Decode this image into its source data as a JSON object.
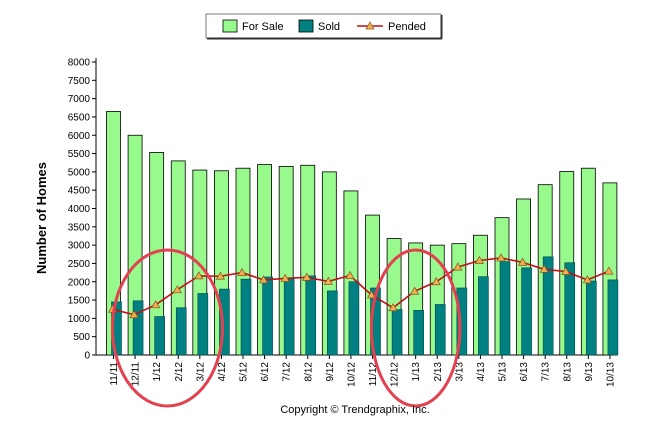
{
  "chart_data": {
    "type": "bar",
    "title": "",
    "xlabel": "",
    "ylabel": "Number of Homes",
    "ylim": [
      0,
      8000
    ],
    "ytick_step": 500,
    "grid": false,
    "legend_position": "top-center",
    "copyright": "Copyright © Trendgraphix, Inc.",
    "categories": [
      "11/11",
      "12/11",
      "1/12",
      "2/12",
      "3/12",
      "4/12",
      "5/12",
      "6/12",
      "7/12",
      "8/12",
      "9/12",
      "10/12",
      "11/12",
      "12/12",
      "1/13",
      "2/13",
      "3/13",
      "4/13",
      "5/13",
      "6/13",
      "7/13",
      "8/13",
      "9/13",
      "10/13"
    ],
    "series": [
      {
        "name": "For Sale",
        "kind": "bar",
        "color": "#98fa8c",
        "values": [
          6650,
          6000,
          5530,
          5300,
          5050,
          5030,
          5100,
          5200,
          5150,
          5180,
          5000,
          4480,
          3820,
          3180,
          3060,
          3000,
          3040,
          3270,
          3750,
          4260,
          4650,
          5010,
          5100,
          4700
        ]
      },
      {
        "name": "Sold",
        "kind": "bar",
        "color": "#008080",
        "values": [
          1450,
          1480,
          1050,
          1290,
          1680,
          1800,
          2070,
          2130,
          2080,
          2160,
          1750,
          2000,
          1830,
          1240,
          1220,
          1380,
          1830,
          2140,
          2550,
          2380,
          2680,
          2520,
          2020,
          2050
        ]
      },
      {
        "name": "Pended",
        "kind": "line",
        "color": "#c01010",
        "marker_color": "#f0b050",
        "values": [
          1250,
          1100,
          1370,
          1780,
          2160,
          2150,
          2250,
          2050,
          2090,
          2120,
          2010,
          2170,
          1640,
          1290,
          1740,
          2000,
          2400,
          2580,
          2650,
          2530,
          2340,
          2280,
          2050,
          2290
        ]
      }
    ],
    "annotations": [
      {
        "type": "ellipse",
        "color": "#e34050",
        "covers": [
          "12/11",
          "1/12",
          "2/12",
          "3/12"
        ]
      },
      {
        "type": "ellipse",
        "color": "#e34050",
        "covers": [
          "12/12",
          "1/13",
          "2/13"
        ]
      }
    ]
  }
}
